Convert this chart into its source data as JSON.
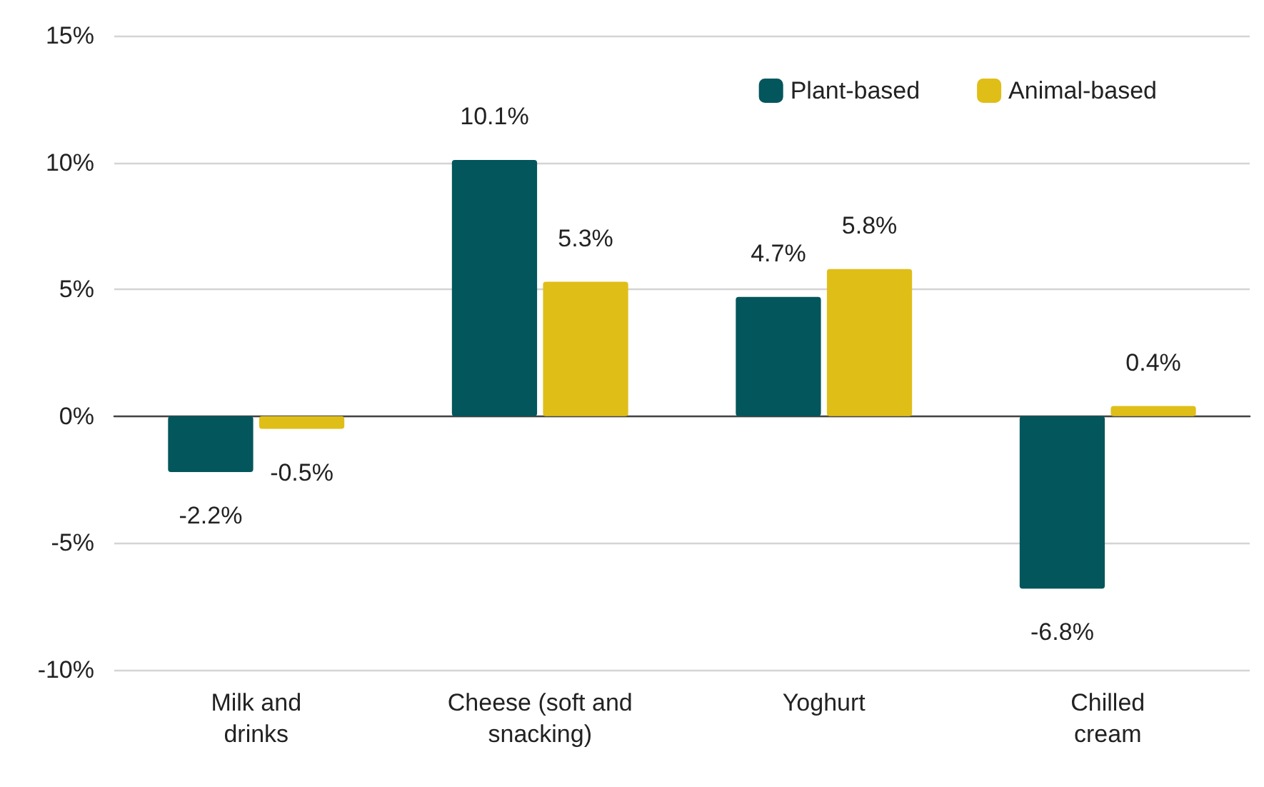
{
  "chart_data": {
    "type": "bar",
    "categories": [
      "Milk and\ndrinks",
      "Cheese (soft and\nsnacking)",
      "Yoghurt",
      "Chilled\ncream"
    ],
    "series": [
      {
        "name": "Plant-based",
        "color": "#02565c",
        "values": [
          -2.2,
          10.1,
          4.7,
          -6.8
        ],
        "value_labels": [
          "-2.2%",
          "10.1%",
          "4.7%",
          "-6.8%"
        ]
      },
      {
        "name": "Animal-based",
        "color": "#e0be18",
        "values": [
          -0.5,
          5.3,
          5.8,
          0.4
        ],
        "value_labels": [
          "-0.5%",
          "5.3%",
          "5.8%",
          "0.4%"
        ]
      }
    ],
    "ylim": [
      -10,
      15
    ],
    "yticks": [
      {
        "value": -10,
        "label": "-10%"
      },
      {
        "value": -5,
        "label": "-5%"
      },
      {
        "value": 0,
        "label": "0%"
      },
      {
        "value": 5,
        "label": "5%"
      },
      {
        "value": 10,
        "label": "10%"
      },
      {
        "value": 15,
        "label": "15%"
      }
    ],
    "grid": "y",
    "legend": "top right"
  }
}
